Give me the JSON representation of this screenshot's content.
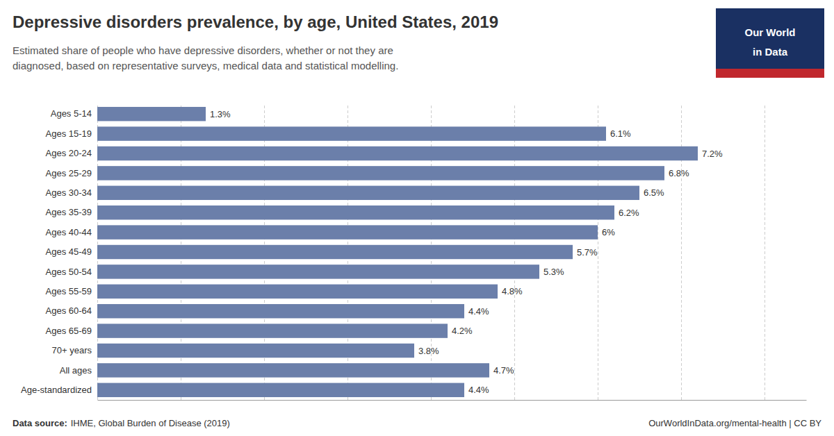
{
  "chart_data": {
    "type": "bar",
    "orientation": "horizontal",
    "title": "Depressive disorders prevalence, by age, United States, 2019",
    "subtitle": "Estimated share of people who have depressive disorders, whether or not they are\ndiagnosed, based on representative surveys, medical data and statistical modelling.",
    "categories": [
      "Ages 5-14",
      "Ages 15-19",
      "Ages 20-24",
      "Ages 25-29",
      "Ages 30-34",
      "Ages 35-39",
      "Ages 40-44",
      "Ages 45-49",
      "Ages 50-54",
      "Ages 55-59",
      "Ages 60-64",
      "Ages 65-69",
      "70+ years",
      "All ages",
      "Age-standardized"
    ],
    "values": [
      1.3,
      6.1,
      7.2,
      6.8,
      6.5,
      6.2,
      6.0,
      5.7,
      5.3,
      4.8,
      4.4,
      4.2,
      3.8,
      4.7,
      4.4
    ],
    "value_labels": [
      "1.3%",
      "6.1%",
      "7.2%",
      "6.8%",
      "6.5%",
      "6.2%",
      "6%",
      "5.7%",
      "5.3%",
      "4.8%",
      "4.4%",
      "4.2%",
      "3.8%",
      "4.7%",
      "4.4%"
    ],
    "color": "#6b7faa",
    "xlim": [
      0,
      8.5
    ],
    "xticks": [
      0,
      1,
      2,
      3,
      4,
      5,
      6,
      7,
      8
    ],
    "grid": true,
    "tick_labels": "y",
    "data_labels": true,
    "annotations": [
      "Data source:",
      "IHME, Global Burden of Disease (2019)",
      "OurWorldInData.org/mental-health | CC BY",
      "Our World",
      "in Data"
    ]
  }
}
